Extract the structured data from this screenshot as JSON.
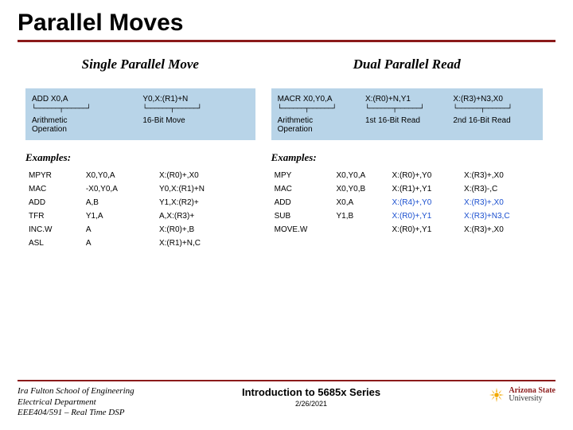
{
  "title": "Parallel Moves",
  "colors": {
    "maroon": "#8b1a1a",
    "box_bg": "#b8d4e8",
    "highlight": "#1a4fcf",
    "asu_gold": "#f2a900"
  },
  "left": {
    "heading": "Single Parallel Move",
    "instr": {
      "cells": [
        {
          "top": "ADD X0,A",
          "label": "Arithmetic\nOperation"
        },
        {
          "top": "Y0,X:(R1)+N",
          "label": "16-Bit Move"
        }
      ]
    },
    "examples_heading": "Examples:",
    "examples": [
      [
        "MPYR",
        "X0,Y0,A",
        "X:(R0)+,X0"
      ],
      [
        "MAC",
        "-X0,Y0,A",
        "Y0,X:(R1)+N"
      ],
      [
        "ADD",
        "A,B",
        "Y1,X:(R2)+"
      ],
      [
        "TFR",
        "Y1,A",
        "A,X:(R3)+"
      ],
      [
        "INC.W",
        "A",
        "X:(R0)+,B"
      ],
      [
        "ASL",
        "A",
        "X:(R1)+N,C"
      ]
    ]
  },
  "right": {
    "heading": "Dual Parallel Read",
    "instr": {
      "cells": [
        {
          "top": "MACR  X0,Y0,A",
          "label": "Arithmetic\nOperation"
        },
        {
          "top": "X:(R0)+N,Y1",
          "label": "1st 16-Bit Read"
        },
        {
          "top": "X:(R3)+N3,X0",
          "label": "2nd 16-Bit Read"
        }
      ]
    },
    "examples_heading": "Examples:",
    "examples": [
      [
        "MPY",
        "X0,Y0,A",
        "X:(R0)+,Y0",
        "X:(R3)+,X0"
      ],
      [
        "MAC",
        "X0,Y0,B",
        "X:(R1)+,Y1",
        "X:(R3)-,C"
      ],
      [
        "ADD",
        "X0,A",
        "X:(R4)+,Y0",
        "X:(R3)+,X0",
        true
      ],
      [
        "SUB",
        "Y1,B",
        "X:(R0)+,Y1",
        "X:(R3)+N3,C",
        true
      ],
      [
        "MOVE.W",
        "",
        "X:(R0)+,Y1",
        "X:(R3)+,X0"
      ]
    ]
  },
  "footer": {
    "left_lines": [
      "Ira Fulton School of Engineering",
      "Electrical Department",
      "EEE404/591 – Real Time DSP"
    ],
    "center_title": "Introduction to 5685x Series",
    "center_date": "2/26/2021",
    "asu_line1": "Arizona State",
    "asu_line2": "University"
  }
}
